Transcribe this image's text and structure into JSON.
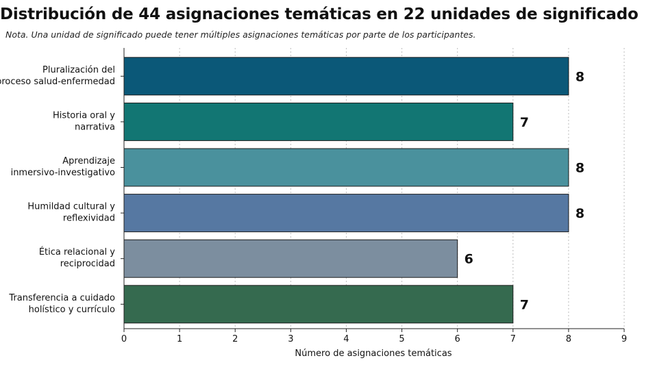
{
  "chart_data": {
    "type": "bar",
    "orientation": "horizontal",
    "title": "Distribución de 44 asignaciones temáticas en 22 unidades de significado",
    "note": "Nota. Una unidad de significado puede tener múltiples asignaciones temáticas por parte de los participantes.",
    "xlabel": "Número de asignaciones temáticas",
    "ylabel": "",
    "xlim": [
      0,
      9
    ],
    "xticks": [
      "0",
      "1",
      "2",
      "3",
      "4",
      "5",
      "6",
      "7",
      "8",
      "9"
    ],
    "grid": "vertical dotted",
    "categories": [
      [
        "Pluralización del",
        "proceso salud-enfermedad"
      ],
      [
        "Historia oral y",
        "narrativa"
      ],
      [
        "Aprendizaje",
        "inmersivo-investigativo"
      ],
      [
        "Humildad cultural y",
        "reflexividad"
      ],
      [
        "Ética relacional y",
        "reciprocidad"
      ],
      [
        "Transferencia a cuidado",
        "holístico y currículo"
      ]
    ],
    "values": [
      8,
      7,
      8,
      8,
      6,
      7
    ],
    "value_labels": [
      "8",
      "7",
      "8",
      "8",
      "6",
      "7"
    ],
    "colors": [
      "#0b5878",
      "#127673",
      "#4a919d",
      "#5678a2",
      "#7c8e9f",
      "#356a4f"
    ]
  }
}
